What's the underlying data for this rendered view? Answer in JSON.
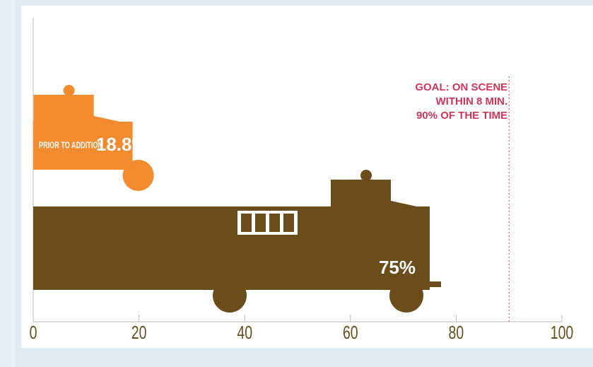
{
  "chart_data": {
    "type": "bar",
    "orientation": "horizontal",
    "categories": [
      "PRIOR TO ADDITION",
      null
    ],
    "values": [
      18.8,
      75
    ],
    "value_labels": [
      "18.8%",
      "75%"
    ],
    "colors": [
      "#f28b2e",
      "#6b4d1c"
    ],
    "xlim": [
      0,
      100
    ],
    "xticks": [
      0,
      20,
      40,
      60,
      80,
      100
    ],
    "goal": {
      "value": 90,
      "lines": [
        "GOAL: ON SCENE",
        "WITHIN 8 MIN.",
        "90% OF THE TIME"
      ],
      "color": "#d0365a"
    }
  }
}
